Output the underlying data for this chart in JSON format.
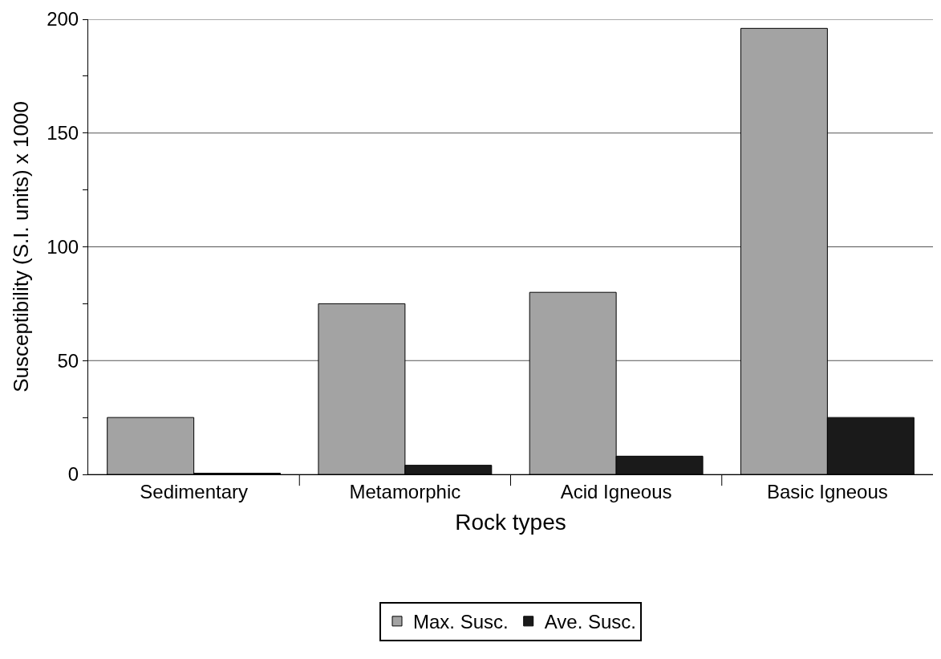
{
  "chart_data": {
    "type": "bar",
    "xlabel": "Rock types",
    "ylabel": "Susceptibility (S.I. units) x 1000",
    "categories": [
      "Sedimentary",
      "Metamorphic",
      "Acid Igneous",
      "Basic Igneous"
    ],
    "series": [
      {
        "name": "Max. Susc.",
        "color": "#a3a3a3",
        "values": [
          25,
          75,
          80,
          196
        ]
      },
      {
        "name": "Ave. Susc.",
        "color": "#1a1a1a",
        "values": [
          0.5,
          4,
          8,
          25
        ]
      }
    ],
    "ylim": [
      0,
      200
    ],
    "yticks": [
      0,
      {
        "value": 25,
        "label": null
      },
      50,
      {
        "value": 75,
        "label": null
      },
      100,
      {
        "value": 125,
        "label": null
      },
      150,
      {
        "value": 175,
        "label": null
      },
      200
    ],
    "grid": "y",
    "legend": "bottom"
  }
}
